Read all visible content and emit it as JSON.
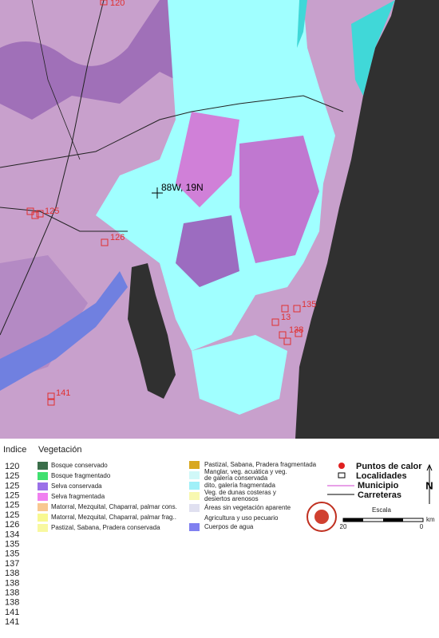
{
  "map": {
    "coord_label": "88W, 19N",
    "hotspot_labels": [
      "120",
      "125",
      "126",
      "135",
      "13",
      "138",
      "141"
    ],
    "indice_header": "Indice",
    "vegetacion_header": "Vegetación",
    "indices": [
      120,
      125,
      125,
      125,
      125,
      125,
      126,
      134,
      135,
      135,
      137,
      138,
      138,
      138,
      138,
      141,
      141
    ],
    "legend_left": [
      {
        "label": "Bosque conservado",
        "color": "#3a6e4a"
      },
      {
        "label": "Bosque fragmentado",
        "color": "#40e070"
      },
      {
        "label": "Selva conservada",
        "color": "#9a70e8"
      },
      {
        "label": "Selva fragmentada",
        "color": "#f080f0"
      },
      {
        "label": "Matorral, Mezquital, Chaparral, palmar cons.",
        "color": "#f8c890"
      },
      {
        "label": "Matorral, Mezquital, Chaparral, palmar frag..",
        "color": "#f8f890"
      },
      {
        "label": "Pastizal, Sabana, Pradera conservada",
        "color": "#f8f8a0"
      }
    ],
    "legend_mid": [
      {
        "lines": [
          "Pastizal, Sabana, Pradera fragmentada"
        ],
        "color": "#d8a820"
      },
      {
        "lines": [
          "Manglar, veg. acuática y veg.",
          "de galería conservada"
        ],
        "color": "#d0f8f8"
      },
      {
        "lines": [
          "dito, galería fragmentada"
        ],
        "color": "#a0f0f8"
      },
      {
        "lines": [
          "Veg. de dunas costeras y",
          "desiertos arenosos"
        ],
        "color": "#f8f8b0"
      },
      {
        "lines": [
          "Áreas sin vegetación aparente"
        ],
        "color": "#e0e0f0"
      },
      {
        "lines": [
          "Agricultura y uso pecuario"
        ],
        "color": "#ffffff"
      },
      {
        "lines": [
          "Cuerpos de agua"
        ],
        "color": "#8080f0"
      }
    ],
    "symbols": {
      "hotspots": "Puntos de calor",
      "towns": "Localidades",
      "municipio": "Municipio",
      "roads": "Carreteras"
    },
    "north": "N",
    "scale": {
      "title": "Escala",
      "left": "20",
      "right": "0",
      "unit": "km"
    }
  }
}
